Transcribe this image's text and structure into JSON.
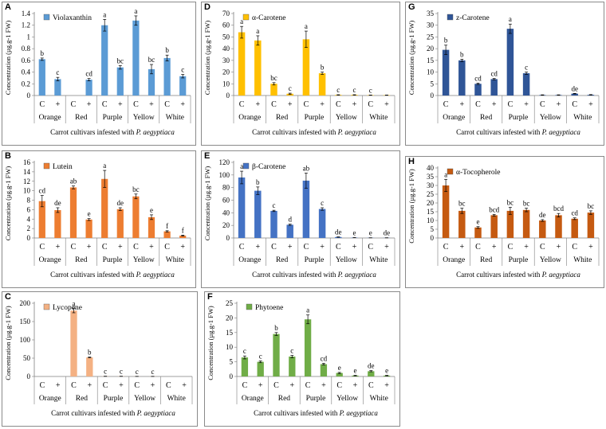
{
  "common": {
    "categories": [
      "Orange",
      "Red",
      "Purple",
      "Yellow",
      "White"
    ],
    "treatments": [
      "C",
      "+"
    ],
    "xlabel_text": "Carrot cultivars infested with",
    "xlabel_species": "P. aegyptiaca",
    "ylabel": "Concentration  (µg.g-1 FW)"
  },
  "chart_data": [
    {
      "id": "A",
      "type": "bar",
      "title": "Violaxanthin",
      "color": "#5b9bd5",
      "ylim": [
        0,
        1.4
      ],
      "yticks": [
        0,
        0.2,
        0.4,
        0.6,
        0.8,
        1,
        1.2,
        1.4
      ],
      "values": [
        0.62,
        0.28,
        0,
        0.27,
        1.2,
        0.48,
        1.28,
        0.45,
        0.64,
        0.33
      ],
      "errors": [
        0.02,
        0.03,
        0,
        0.02,
        0.1,
        0.03,
        0.08,
        0.08,
        0.05,
        0.03
      ],
      "letters": [
        "b",
        "c",
        "",
        "cd",
        "a",
        "bc",
        "a",
        "bc",
        "b",
        "c"
      ]
    },
    {
      "id": "D",
      "type": "bar",
      "title": "α-Carotene",
      "color": "#ffc000",
      "ylim": [
        0,
        70
      ],
      "yticks": [
        0,
        10,
        20,
        30,
        40,
        50,
        60,
        70
      ],
      "values": [
        54,
        47,
        10,
        1.5,
        48,
        19,
        0.5,
        0.5,
        0.3,
        0.3
      ],
      "errors": [
        5,
        4,
        1,
        0.5,
        7,
        1,
        0.2,
        0.2,
        0.1,
        0.1
      ],
      "letters": [
        "a",
        "a",
        "bc",
        "c",
        "a",
        "b",
        "c",
        "c",
        "c",
        ""
      ]
    },
    {
      "id": "G",
      "type": "bar",
      "title": "z-Carotene",
      "color": "#2f5597",
      "ylim": [
        0,
        35
      ],
      "yticks": [
        0,
        5,
        10,
        15,
        20,
        25,
        30,
        35
      ],
      "values": [
        19.5,
        15,
        5,
        7,
        28.5,
        9.5,
        0.2,
        0.2,
        0.8,
        0.3
      ],
      "errors": [
        2,
        0.5,
        0.3,
        0.3,
        2,
        0.5,
        0.1,
        0.1,
        0.1,
        0.1
      ],
      "letters": [
        "b",
        "b",
        "cd",
        "cd",
        "a",
        "c",
        "",
        "",
        "de",
        ""
      ]
    },
    {
      "id": "B",
      "type": "bar",
      "title": "Lutein",
      "color": "#ed7d31",
      "ylim": [
        0,
        16
      ],
      "yticks": [
        0,
        2,
        4,
        6,
        8,
        10,
        12,
        14,
        16
      ],
      "values": [
        7.8,
        5.9,
        10.7,
        3.9,
        12.5,
        6.1,
        8.8,
        4.4,
        1.4,
        0.5
      ],
      "errors": [
        1.2,
        0.5,
        0.3,
        0.2,
        1.8,
        0.3,
        0.5,
        0.5,
        0.15,
        0.1
      ],
      "letters": [
        "cd",
        "de",
        "ab",
        "e",
        "a",
        "de",
        "bc",
        "e",
        "f",
        "f"
      ]
    },
    {
      "id": "E",
      "type": "bar",
      "title": "β-Carotene",
      "color": "#4472c4",
      "ylim": [
        0,
        120
      ],
      "yticks": [
        0,
        20,
        40,
        60,
        80,
        100,
        120
      ],
      "values": [
        96,
        75,
        43,
        21,
        91,
        46,
        1.5,
        0.5,
        0.3,
        0.3
      ],
      "errors": [
        10,
        6,
        1,
        1,
        12,
        2,
        0.3,
        0.1,
        0.1,
        0.1
      ],
      "letters": [
        "a",
        "b",
        "c",
        "d",
        "ab",
        "c",
        "de",
        "e",
        "e",
        "de"
      ]
    },
    {
      "id": "H",
      "type": "bar",
      "title": "α-Tocopherole",
      "color": "#c55a11",
      "ylim": [
        0,
        40
      ],
      "yticks": [
        0,
        5,
        10,
        15,
        20,
        25,
        30,
        35,
        40
      ],
      "values": [
        30,
        15.5,
        6,
        13,
        15.5,
        16,
        10,
        13,
        11,
        14.5
      ],
      "errors": [
        3.5,
        1.5,
        0.5,
        0.5,
        2,
        1,
        0.5,
        1,
        0.5,
        1
      ],
      "letters": [
        "a",
        "bc",
        "e",
        "bcd",
        "bc",
        "bc",
        "de",
        "bcd",
        "cd",
        "bc"
      ]
    },
    {
      "id": "C",
      "type": "bar",
      "title": "Lycopene",
      "color": "#f4b183",
      "ylim": [
        0,
        200
      ],
      "yticks": [
        0,
        50,
        100,
        150,
        200
      ],
      "values": [
        0,
        0,
        180,
        52,
        0.5,
        0.5,
        0.3,
        0.3,
        0,
        0
      ],
      "errors": [
        0,
        0,
        6,
        1,
        0.2,
        0.2,
        0.1,
        0.1,
        0,
        0
      ],
      "letters": [
        "",
        "",
        "a",
        "b",
        "c",
        "c",
        "c",
        "c",
        "",
        ""
      ]
    },
    {
      "id": "F",
      "type": "bar",
      "title": "Phytoene",
      "color": "#70ad47",
      "ylim": [
        0,
        25
      ],
      "yticks": [
        0,
        5,
        10,
        15,
        20,
        25
      ],
      "values": [
        6.5,
        5,
        14.5,
        6.8,
        19.5,
        4.2,
        1.2,
        0.3,
        1.8,
        0.3
      ],
      "errors": [
        0.5,
        0.3,
        0.5,
        0.4,
        1.5,
        0.3,
        0.2,
        0.1,
        0.2,
        0.1
      ],
      "letters": [
        "c",
        "c",
        "b",
        "c",
        "a",
        "cd",
        "e",
        "e",
        "de",
        "e"
      ]
    }
  ]
}
